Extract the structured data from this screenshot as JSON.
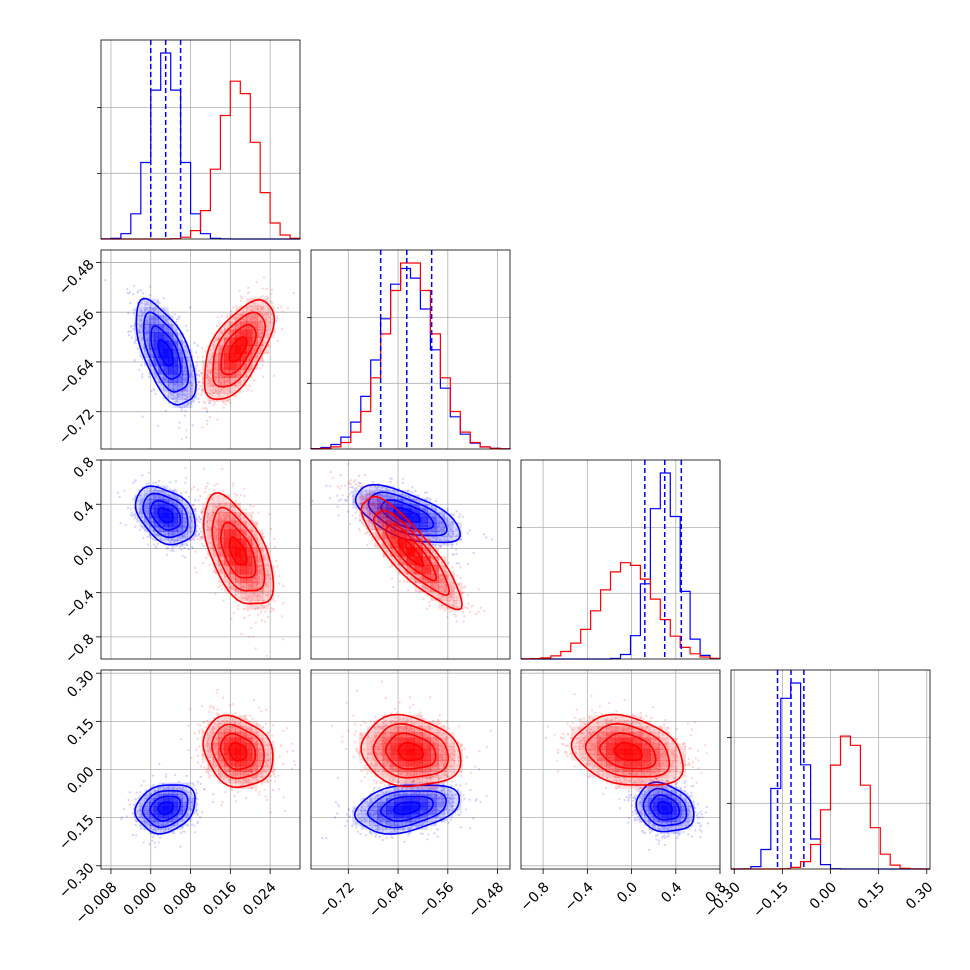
{
  "chart_data": {
    "type": "corner",
    "parameters": 4,
    "grid": true,
    "axes": [
      {
        "range": [
          -0.01,
          0.03
        ],
        "ticks": [
          -0.008,
          0.0,
          0.008,
          0.016,
          0.024
        ],
        "tick_labels": [
          "−0.008",
          "0.000",
          "0.008",
          "0.016",
          "0.024"
        ]
      },
      {
        "range": [
          -0.78,
          -0.46
        ],
        "ticks": [
          -0.72,
          -0.64,
          -0.56,
          -0.48
        ],
        "tick_labels": [
          "−0.72",
          "−0.64",
          "−0.56",
          "−0.48"
        ]
      },
      {
        "range": [
          -1.0,
          0.8
        ],
        "ticks": [
          -0.8,
          -0.4,
          0.0,
          0.4,
          0.8
        ],
        "tick_labels": [
          "−0.8",
          "−0.4",
          "0.0",
          "0.4",
          "0.8"
        ]
      },
      {
        "range": [
          -0.31,
          0.31
        ],
        "ticks": [
          -0.3,
          -0.15,
          0.0,
          0.15,
          0.3
        ],
        "tick_labels": [
          "−0.30",
          "−0.15",
          "0.00",
          "0.15",
          "0.30"
        ]
      }
    ],
    "series": [
      {
        "color": "#0000ff",
        "mean": [
          0.003,
          -0.626,
          0.3,
          -0.12
        ],
        "std": [
          0.003,
          0.042,
          0.13,
          0.038
        ],
        "quantiles": [
          [
            0.0,
            0.003,
            0.006
          ],
          [
            -0.668,
            -0.626,
            -0.586
          ],
          [
            0.12,
            0.3,
            0.45
          ],
          [
            -0.165,
            -0.123,
            -0.083
          ]
        ]
      },
      {
        "color": "#ff0000",
        "mean": [
          0.0175,
          -0.62,
          -0.03,
          0.055
        ],
        "std": [
          0.0035,
          0.04,
          0.25,
          0.055
        ]
      }
    ],
    "correlations": [
      {
        "pair": [
          0,
          1
        ],
        "series": [
          -0.6,
          0.6
        ]
      },
      {
        "pair": [
          0,
          2
        ],
        "series": [
          -0.35,
          -0.55
        ]
      },
      {
        "pair": [
          0,
          3
        ],
        "series": [
          0.2,
          -0.2
        ]
      },
      {
        "pair": [
          1,
          2
        ],
        "series": [
          -0.6,
          -0.85
        ]
      },
      {
        "pair": [
          1,
          3
        ],
        "series": [
          0.3,
          -0.15
        ]
      },
      {
        "pair": [
          2,
          3
        ],
        "series": [
          -0.2,
          -0.25
        ]
      }
    ]
  }
}
